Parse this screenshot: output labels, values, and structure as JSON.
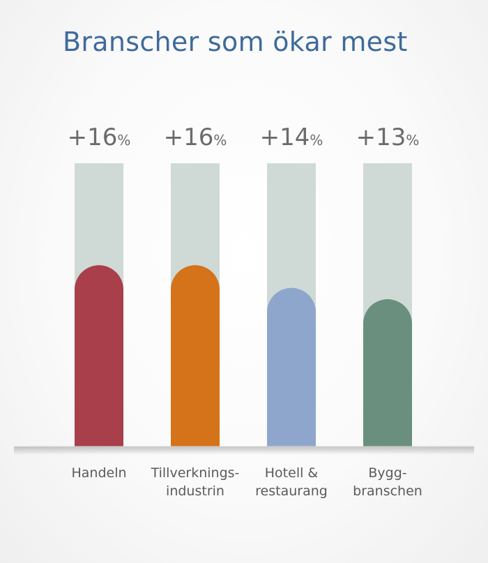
{
  "chart_data": {
    "type": "bar",
    "title": "Branscher som ökar mest",
    "categories": [
      [
        "Handeln"
      ],
      [
        "Tillverknings-",
        "industrin"
      ],
      [
        "Hotell &",
        "restaurang"
      ],
      [
        "Bygg-",
        "branschen"
      ]
    ],
    "values": [
      16,
      16,
      14,
      13
    ],
    "value_labels": [
      "+16",
      "+16",
      "+14",
      "+13"
    ],
    "unit": "%",
    "ylim": [
      0,
      25
    ],
    "colors": [
      "#a83f4b",
      "#d4731a",
      "#8fa6cc",
      "#6a8f7f"
    ],
    "track_color": "#cfdad6"
  }
}
